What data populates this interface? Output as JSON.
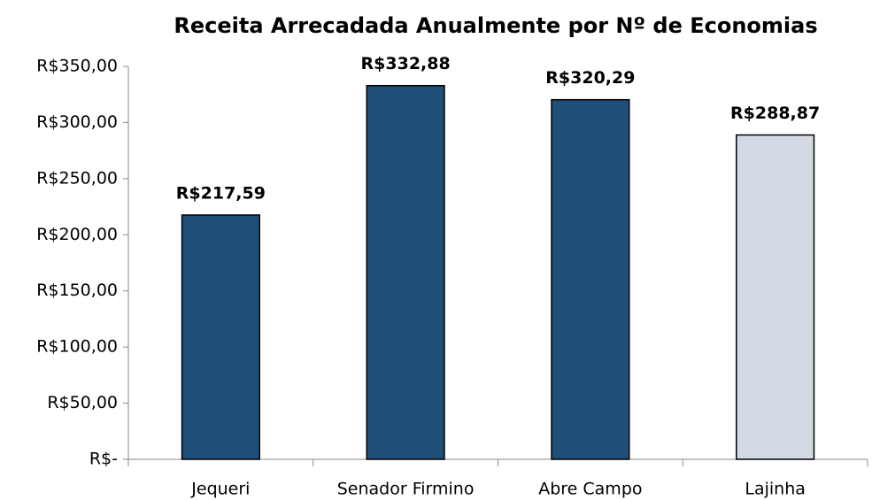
{
  "chart_data": {
    "type": "bar",
    "title": "Receita Arrecadada Anualmente por Nº de Economias",
    "categories": [
      "Jequeri",
      "Senador Firmino",
      "Abre Campo",
      "Lajinha"
    ],
    "values": [
      217.59,
      332.88,
      320.29,
      288.87
    ],
    "value_labels": [
      "R$217,59",
      "R$332,88",
      "R$320,29",
      "R$288,87"
    ],
    "colors": [
      "#1f4e79",
      "#1f4e79",
      "#1f4e79",
      "#d3dae4"
    ],
    "ylim": [
      0,
      350
    ],
    "yticks": [
      {
        "value": 0,
        "label": "R$-"
      },
      {
        "value": 50,
        "label": "R$50,00"
      },
      {
        "value": 100,
        "label": "R$100,00"
      },
      {
        "value": 150,
        "label": "R$150,00"
      },
      {
        "value": 200,
        "label": "R$200,00"
      },
      {
        "value": 250,
        "label": "R$250,00"
      },
      {
        "value": 300,
        "label": "R$300,00"
      },
      {
        "value": 350,
        "label": "R$350,00"
      }
    ],
    "grid": false
  }
}
